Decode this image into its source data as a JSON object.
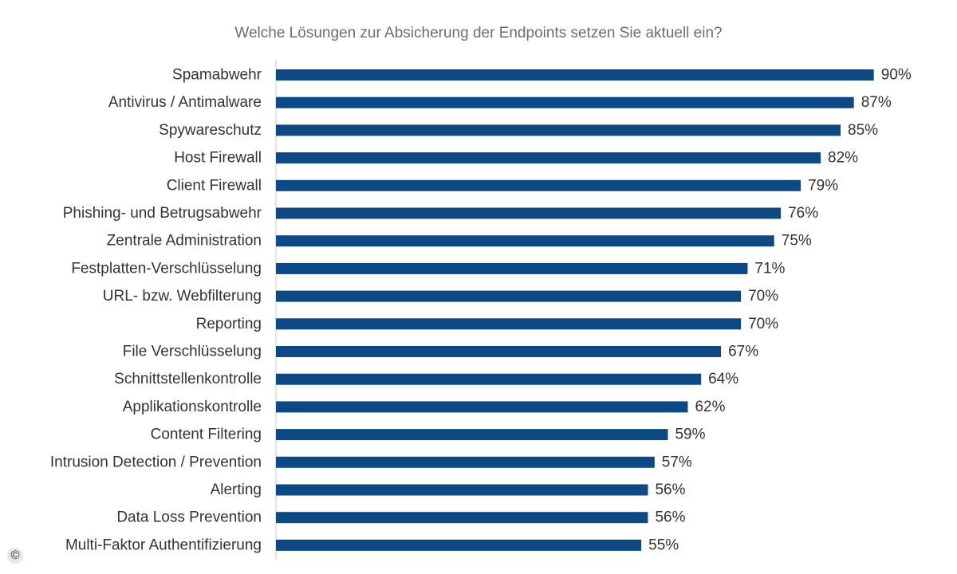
{
  "chart_data": {
    "type": "bar",
    "orientation": "horizontal",
    "title": "Welche Lösungen zur Absicherung der Endpoints setzen Sie aktuell ein?",
    "categories": [
      "Spamabwehr",
      "Antivirus / Antimalware",
      "Spywareschutz",
      "Host Firewall",
      "Client Firewall",
      "Phishing- und Betrugsabwehr",
      "Zentrale Administration",
      "Festplatten-Verschlüsselung",
      "URL- bzw. Webfilterung",
      "Reporting",
      "File Verschlüsselung",
      "Schnittstellenkontrolle",
      "Applikationskontrolle",
      "Content Filtering",
      "Intrusion Detection / Prevention",
      "Alerting",
      "Data Loss Prevention",
      "Multi-Faktor Authentifizierung"
    ],
    "values": [
      90,
      87,
      85,
      82,
      79,
      76,
      75,
      71,
      70,
      70,
      67,
      64,
      62,
      59,
      57,
      56,
      56,
      55
    ],
    "value_labels": [
      "90%",
      "87%",
      "85%",
      "82%",
      "79%",
      "76%",
      "75%",
      "71%",
      "70%",
      "70%",
      "67%",
      "64%",
      "62%",
      "59%",
      "57%",
      "56%",
      "56%",
      "55%"
    ],
    "unit": "%",
    "xlim": [
      0,
      100
    ],
    "grid": false,
    "legend": "none",
    "bar_color": "#0d4a85",
    "axis_color": "#c8c8c8"
  },
  "footer": {
    "copyright_symbol": "©"
  }
}
